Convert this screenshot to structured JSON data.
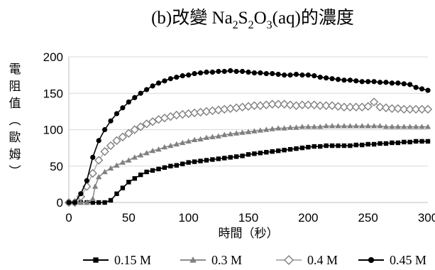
{
  "chart_data": {
    "type": "line",
    "title_prefix": "(b)改變 Na",
    "title_sub1": "2",
    "title_mid1": "S",
    "title_sub2": "2",
    "title_mid2": "O",
    "title_sub3": "3",
    "title_suffix": "(aq)的濃度",
    "xlabel": "時間（秒）",
    "ylabel_chars": [
      "電",
      "阻",
      "值",
      "︵",
      "歐",
      "姆",
      "︶"
    ],
    "xlim": [
      0,
      300
    ],
    "ylim": [
      0,
      200
    ],
    "x_ticks": [
      0,
      50,
      100,
      150,
      200,
      250,
      300
    ],
    "y_ticks": [
      0,
      50,
      100,
      150,
      200
    ],
    "grid": "horizontal",
    "legend_position": "bottom",
    "series": [
      {
        "name": "0.15 M",
        "marker": "square",
        "color": "#000000",
        "line_color": "#000000",
        "points": [
          [
            0,
            0
          ],
          [
            5,
            0
          ],
          [
            10,
            0
          ],
          [
            15,
            0
          ],
          [
            20,
            0
          ],
          [
            25,
            0
          ],
          [
            30,
            0
          ],
          [
            35,
            3
          ],
          [
            40,
            12
          ],
          [
            45,
            20
          ],
          [
            50,
            28
          ],
          [
            55,
            33
          ],
          [
            60,
            38
          ],
          [
            65,
            42
          ],
          [
            70,
            44
          ],
          [
            75,
            46
          ],
          [
            80,
            48
          ],
          [
            85,
            50
          ],
          [
            90,
            51
          ],
          [
            95,
            53
          ],
          [
            100,
            55
          ],
          [
            105,
            56
          ],
          [
            110,
            57
          ],
          [
            115,
            58
          ],
          [
            120,
            59
          ],
          [
            125,
            60
          ],
          [
            130,
            61
          ],
          [
            135,
            62
          ],
          [
            140,
            63
          ],
          [
            145,
            64
          ],
          [
            150,
            66
          ],
          [
            155,
            67
          ],
          [
            160,
            68
          ],
          [
            165,
            69
          ],
          [
            170,
            70
          ],
          [
            175,
            71
          ],
          [
            180,
            72
          ],
          [
            185,
            73
          ],
          [
            190,
            74
          ],
          [
            195,
            75
          ],
          [
            200,
            76
          ],
          [
            205,
            77
          ],
          [
            210,
            77
          ],
          [
            215,
            78
          ],
          [
            220,
            78
          ],
          [
            225,
            78
          ],
          [
            230,
            78
          ],
          [
            235,
            78
          ],
          [
            240,
            79
          ],
          [
            245,
            79
          ],
          [
            250,
            80
          ],
          [
            255,
            80
          ],
          [
            260,
            81
          ],
          [
            265,
            81
          ],
          [
            270,
            82
          ],
          [
            275,
            82
          ],
          [
            280,
            83
          ],
          [
            285,
            83
          ],
          [
            290,
            84
          ],
          [
            295,
            84
          ],
          [
            300,
            84
          ]
        ]
      },
      {
        "name": "0.3 M",
        "marker": "triangle",
        "color": "#808080",
        "line_color": "#8c8c8c",
        "points": [
          [
            0,
            0
          ],
          [
            5,
            0
          ],
          [
            10,
            0
          ],
          [
            15,
            0
          ],
          [
            20,
            5
          ],
          [
            22,
            22
          ],
          [
            25,
            35
          ],
          [
            30,
            42
          ],
          [
            35,
            47
          ],
          [
            40,
            51
          ],
          [
            45,
            55
          ],
          [
            50,
            58
          ],
          [
            55,
            62
          ],
          [
            60,
            65
          ],
          [
            65,
            68
          ],
          [
            70,
            71
          ],
          [
            75,
            73
          ],
          [
            80,
            76
          ],
          [
            85,
            78
          ],
          [
            90,
            80
          ],
          [
            95,
            82
          ],
          [
            100,
            84
          ],
          [
            105,
            86
          ],
          [
            110,
            87
          ],
          [
            115,
            89
          ],
          [
            120,
            90
          ],
          [
            125,
            91
          ],
          [
            130,
            93
          ],
          [
            135,
            94
          ],
          [
            140,
            95
          ],
          [
            145,
            96
          ],
          [
            150,
            97
          ],
          [
            155,
            98
          ],
          [
            160,
            99
          ],
          [
            165,
            100
          ],
          [
            170,
            101
          ],
          [
            175,
            102
          ],
          [
            180,
            102
          ],
          [
            185,
            103
          ],
          [
            190,
            103
          ],
          [
            195,
            104
          ],
          [
            200,
            104
          ],
          [
            205,
            104
          ],
          [
            210,
            104
          ],
          [
            215,
            105
          ],
          [
            220,
            105
          ],
          [
            225,
            105
          ],
          [
            230,
            105
          ],
          [
            235,
            105
          ],
          [
            240,
            105
          ],
          [
            245,
            105
          ],
          [
            250,
            105
          ],
          [
            255,
            105
          ],
          [
            260,
            105
          ],
          [
            265,
            104
          ],
          [
            270,
            104
          ],
          [
            275,
            104
          ],
          [
            280,
            104
          ],
          [
            285,
            104
          ],
          [
            290,
            104
          ],
          [
            295,
            104
          ],
          [
            300,
            104
          ]
        ]
      },
      {
        "name": "0.4 M",
        "marker": "diamond",
        "color": "#808080",
        "line_color": "#b3b3b3",
        "points": [
          [
            0,
            0
          ],
          [
            5,
            0
          ],
          [
            10,
            8
          ],
          [
            15,
            22
          ],
          [
            20,
            40
          ],
          [
            25,
            58
          ],
          [
            30,
            70
          ],
          [
            35,
            78
          ],
          [
            40,
            85
          ],
          [
            45,
            90
          ],
          [
            50,
            95
          ],
          [
            55,
            100
          ],
          [
            60,
            104
          ],
          [
            65,
            108
          ],
          [
            70,
            111
          ],
          [
            75,
            114
          ],
          [
            80,
            116
          ],
          [
            85,
            118
          ],
          [
            90,
            120
          ],
          [
            95,
            121
          ],
          [
            100,
            122
          ],
          [
            105,
            123
          ],
          [
            110,
            124
          ],
          [
            115,
            125
          ],
          [
            120,
            126
          ],
          [
            125,
            127
          ],
          [
            130,
            128
          ],
          [
            135,
            129
          ],
          [
            140,
            130
          ],
          [
            145,
            131
          ],
          [
            150,
            132
          ],
          [
            155,
            133
          ],
          [
            160,
            133
          ],
          [
            165,
            134
          ],
          [
            170,
            135
          ],
          [
            175,
            135
          ],
          [
            180,
            135
          ],
          [
            185,
            134
          ],
          [
            190,
            133
          ],
          [
            195,
            134
          ],
          [
            200,
            134
          ],
          [
            205,
            134
          ],
          [
            210,
            133
          ],
          [
            215,
            133
          ],
          [
            220,
            133
          ],
          [
            225,
            132
          ],
          [
            230,
            131
          ],
          [
            235,
            131
          ],
          [
            240,
            131
          ],
          [
            245,
            131
          ],
          [
            250,
            132
          ],
          [
            255,
            138
          ],
          [
            260,
            131
          ],
          [
            265,
            130
          ],
          [
            270,
            129
          ],
          [
            275,
            129
          ],
          [
            280,
            128
          ],
          [
            285,
            128
          ],
          [
            290,
            128
          ],
          [
            295,
            128
          ],
          [
            300,
            128
          ]
        ]
      },
      {
        "name": "0.45 M",
        "marker": "circle",
        "color": "#000000",
        "line_color": "#000000",
        "points": [
          [
            0,
            0
          ],
          [
            5,
            0
          ],
          [
            10,
            12
          ],
          [
            15,
            30
          ],
          [
            20,
            62
          ],
          [
            25,
            85
          ],
          [
            30,
            100
          ],
          [
            35,
            112
          ],
          [
            40,
            122
          ],
          [
            45,
            130
          ],
          [
            50,
            138
          ],
          [
            55,
            144
          ],
          [
            60,
            150
          ],
          [
            65,
            155
          ],
          [
            70,
            160
          ],
          [
            75,
            164
          ],
          [
            80,
            167
          ],
          [
            85,
            170
          ],
          [
            90,
            172
          ],
          [
            95,
            174
          ],
          [
            100,
            175
          ],
          [
            105,
            177
          ],
          [
            110,
            178
          ],
          [
            115,
            179
          ],
          [
            120,
            179
          ],
          [
            125,
            180
          ],
          [
            130,
            180
          ],
          [
            135,
            181
          ],
          [
            140,
            180
          ],
          [
            145,
            180
          ],
          [
            150,
            179
          ],
          [
            155,
            178
          ],
          [
            160,
            178
          ],
          [
            165,
            177
          ],
          [
            170,
            177
          ],
          [
            175,
            176
          ],
          [
            180,
            175
          ],
          [
            185,
            175
          ],
          [
            190,
            176
          ],
          [
            195,
            175
          ],
          [
            200,
            175
          ],
          [
            205,
            174
          ],
          [
            210,
            172
          ],
          [
            215,
            171
          ],
          [
            220,
            170
          ],
          [
            225,
            169
          ],
          [
            230,
            168
          ],
          [
            235,
            168
          ],
          [
            240,
            167
          ],
          [
            245,
            166
          ],
          [
            250,
            166
          ],
          [
            255,
            166
          ],
          [
            260,
            165
          ],
          [
            265,
            165
          ],
          [
            270,
            164
          ],
          [
            275,
            164
          ],
          [
            280,
            163
          ],
          [
            285,
            162
          ],
          [
            290,
            158
          ],
          [
            295,
            156
          ],
          [
            300,
            154
          ]
        ]
      }
    ]
  }
}
